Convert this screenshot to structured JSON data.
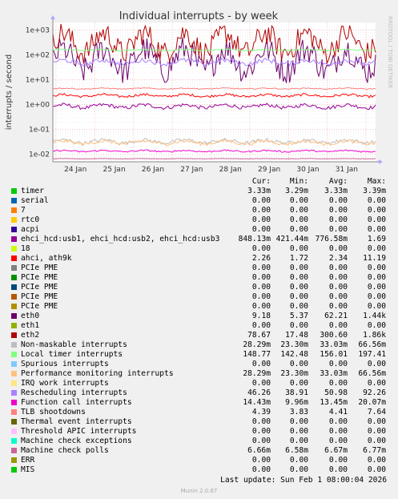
{
  "chart_data": {
    "type": "line",
    "title": "Individual interrupts - by week",
    "ylabel": "interrupts / second",
    "watermark": "RRDTOOL / TOBI OETIKER",
    "yscale": "log",
    "ylim": [
      0.005,
      2000
    ],
    "yticks": [
      {
        "value": 1000,
        "label": "1e+03"
      },
      {
        "value": 100,
        "label": "1e+02"
      },
      {
        "value": 10,
        "label": "1e+01"
      },
      {
        "value": 1,
        "label": "1e+00"
      },
      {
        "value": 0.1,
        "label": "1e-01"
      },
      {
        "value": 0.01,
        "label": "1e-02"
      }
    ],
    "xticks": [
      "24 Jan",
      "25 Jan",
      "26 Jan",
      "27 Jan",
      "28 Jan",
      "29 Jan",
      "30 Jan",
      "31 Jan"
    ],
    "grid": true,
    "columns": [
      "Cur:",
      "Min:",
      "Avg:",
      "Max:"
    ],
    "series": [
      {
        "name": "timer",
        "color": "#00cc00",
        "cur": "3.33m",
        "min": "3.29m",
        "avg": "3.33m",
        "max": "3.39m",
        "value": 0.00333,
        "vary": 0.02
      },
      {
        "name": "serial",
        "color": "#0066b3",
        "cur": "0.00",
        "min": "0.00",
        "avg": "0.00",
        "max": "0.00"
      },
      {
        "name": "7",
        "color": "#ff8000",
        "cur": "0.00",
        "min": "0.00",
        "avg": "0.00",
        "max": "0.00"
      },
      {
        "name": "rtc0",
        "color": "#ffcc00",
        "cur": "0.00",
        "min": "0.00",
        "avg": "0.00",
        "max": "0.00"
      },
      {
        "name": "acpi",
        "color": "#330099",
        "cur": "0.00",
        "min": "0.00",
        "avg": "0.00",
        "max": "0.00"
      },
      {
        "name": "ehci_hcd:usb1, ehci_hcd:usb2, ehci_hcd:usb3",
        "color": "#990099",
        "cur": "848.13m",
        "min": "421.44m",
        "avg": "776.58m",
        "max": "1.69",
        "value": 0.85,
        "vary": 0.12
      },
      {
        "name": "18",
        "color": "#ccff00",
        "cur": "0.00",
        "min": "0.00",
        "avg": "0.00",
        "max": "0.00"
      },
      {
        "name": "ahci, ath9k",
        "color": "#ff0000",
        "cur": "2.26",
        "min": "1.72",
        "avg": "2.34",
        "max": "11.19",
        "value": 2.3,
        "vary": 0.08
      },
      {
        "name": "PCIe PME",
        "color": "#808080",
        "cur": "0.00",
        "min": "0.00",
        "avg": "0.00",
        "max": "0.00"
      },
      {
        "name": "PCIe PME",
        "color": "#008f00",
        "cur": "0.00",
        "min": "0.00",
        "avg": "0.00",
        "max": "0.00"
      },
      {
        "name": "PCIe PME",
        "color": "#00487d",
        "cur": "0.00",
        "min": "0.00",
        "avg": "0.00",
        "max": "0.00"
      },
      {
        "name": "PCIe PME",
        "color": "#b35a00",
        "cur": "0.00",
        "min": "0.00",
        "avg": "0.00",
        "max": "0.00"
      },
      {
        "name": "PCIe PME",
        "color": "#b38f00",
        "cur": "0.00",
        "min": "0.00",
        "avg": "0.00",
        "max": "0.00"
      },
      {
        "name": "eth0",
        "color": "#6b006b",
        "cur": "9.18",
        "min": "5.37",
        "avg": "62.21",
        "max": "1.44k",
        "value": 62,
        "vary": 0.9
      },
      {
        "name": "eth1",
        "color": "#8fb300",
        "cur": "0.00",
        "min": "0.00",
        "avg": "0.00",
        "max": "0.00"
      },
      {
        "name": "eth2",
        "color": "#b30000",
        "cur": "78.67",
        "min": "17.48",
        "avg": "300.60",
        "max": "1.86k",
        "value": 300,
        "vary": 0.8
      },
      {
        "name": "Non-maskable interrupts",
        "color": "#bebebe",
        "cur": "28.29m",
        "min": "23.30m",
        "avg": "33.03m",
        "max": "66.56m",
        "value": 0.033,
        "vary": 0.12
      },
      {
        "name": "Local timer interrupts",
        "color": "#80ff80",
        "cur": "148.77",
        "min": "142.48",
        "avg": "156.01",
        "max": "197.41",
        "value": 156,
        "vary": 0.04
      },
      {
        "name": "Spurious interrupts",
        "color": "#80c9ff",
        "cur": "0.00",
        "min": "0.00",
        "avg": "0.00",
        "max": "0.00"
      },
      {
        "name": "Performance monitoring interrupts",
        "color": "#ffc080",
        "cur": "28.29m",
        "min": "23.30m",
        "avg": "33.03m",
        "max": "66.56m",
        "value": 0.03,
        "vary": 0.12
      },
      {
        "name": "IRQ work interrupts",
        "color": "#ffe680",
        "cur": "0.00",
        "min": "0.00",
        "avg": "0.00",
        "max": "0.00"
      },
      {
        "name": "Rescheduling interrupts",
        "color": "#aa80ff",
        "cur": "46.26",
        "min": "38.91",
        "avg": "50.98",
        "max": "92.26",
        "value": 51,
        "vary": 0.15
      },
      {
        "name": "Function call interrupts",
        "color": "#ee00cc",
        "cur": "14.43m",
        "min": "9.96m",
        "avg": "13.45m",
        "max": "20.07m",
        "value": 0.0135,
        "vary": 0.05
      },
      {
        "name": "TLB shootdowns",
        "color": "#ff8080",
        "cur": "4.39",
        "min": "3.83",
        "avg": "4.41",
        "max": "7.64",
        "value": 4.4,
        "vary": 0.03
      },
      {
        "name": "Thermal event interrupts",
        "color": "#666600",
        "cur": "0.00",
        "min": "0.00",
        "avg": "0.00",
        "max": "0.00"
      },
      {
        "name": "Threshold APIC interrupts",
        "color": "#ffbfff",
        "cur": "0.00",
        "min": "0.00",
        "avg": "0.00",
        "max": "0.00"
      },
      {
        "name": "Machine check exceptions",
        "color": "#00ffcc",
        "cur": "0.00",
        "min": "0.00",
        "avg": "0.00",
        "max": "0.00"
      },
      {
        "name": "Machine check polls",
        "color": "#cc6699",
        "cur": "6.66m",
        "min": "6.58m",
        "avg": "6.67m",
        "max": "6.77m",
        "value": 0.00667,
        "vary": 0.01
      },
      {
        "name": "ERR",
        "color": "#999900",
        "cur": "0.00",
        "min": "0.00",
        "avg": "0.00",
        "max": "0.00"
      },
      {
        "name": "MIS",
        "color": "#00cc00",
        "cur": "0.00",
        "min": "0.00",
        "avg": "0.00",
        "max": "0.00"
      }
    ]
  },
  "footer": {
    "last_update": "Last update: Sun Feb  1 08:00:04 2026",
    "munin": "Munin 2.0.67"
  }
}
